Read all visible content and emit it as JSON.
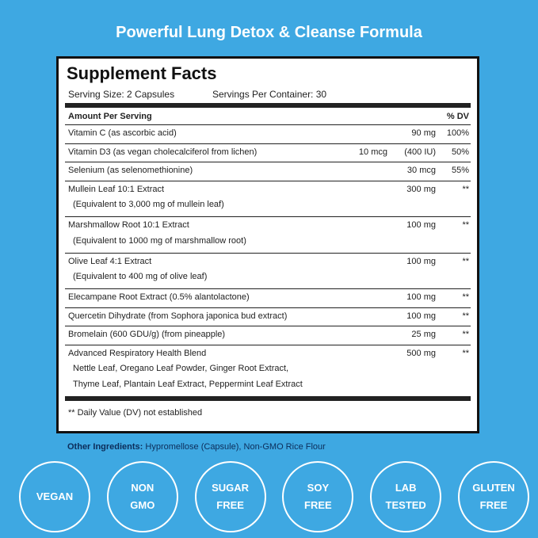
{
  "title": "Powerful Lung Detox & Cleanse Formula",
  "panel": {
    "heading": "Supplement Facts",
    "serving_size": "Serving Size: 2 Capsules",
    "servings_per_container": "Servings Per Container: 30",
    "header": {
      "amount": "Amount Per Serving",
      "dv": "% DV"
    },
    "rows": [
      {
        "lines": [
          "Vitamin C (as ascorbic acid)"
        ],
        "amount": "90 mg",
        "dv": "100%"
      },
      {
        "lines": [
          "Vitamin D3 (as vegan cholecalciferol from lichen)"
        ],
        "amount_alt": "10 mcg",
        "amount": "(400 IU)",
        "dv": "50%"
      },
      {
        "lines": [
          "Selenium (as selenomethionine)"
        ],
        "amount": "30 mcg",
        "dv": "55%"
      },
      {
        "lines": [
          "Mullein Leaf 10:1 Extract",
          "(Equivalent to 3,000 mg of mullein leaf)"
        ],
        "amount": "300 mg",
        "dv": "**"
      },
      {
        "lines": [
          "Marshmallow Root 10:1 Extract",
          "(Equivalent to 1000 mg of marshmallow root)"
        ],
        "amount": "100 mg",
        "dv": "**"
      },
      {
        "lines": [
          "Olive Leaf 4:1 Extract",
          "(Equivalent to 400 mg of olive leaf)"
        ],
        "amount": "100 mg",
        "dv": "**"
      },
      {
        "lines": [
          "Elecampane Root Extract (0.5% alantolactone)"
        ],
        "amount": "100 mg",
        "dv": "**"
      },
      {
        "lines": [
          "Quercetin Dihydrate (from Sophora japonica bud extract)"
        ],
        "amount": "100 mg",
        "dv": "**"
      },
      {
        "lines": [
          "Bromelain (600 GDU/g) (from pineapple)"
        ],
        "amount": "25 mg",
        "dv": "**"
      },
      {
        "lines": [
          "Advanced Respiratory Health Blend",
          "Nettle Leaf, Oregano Leaf Powder, Ginger Root Extract,",
          "Thyme Leaf, Plantain Leaf Extract, Peppermint Leaf Extract"
        ],
        "amount": "500 mg",
        "dv": "**"
      }
    ],
    "footnote": "** Daily Value (DV) not established"
  },
  "other_ingredients": {
    "label": "Other Ingredients:",
    "text": "Hypromellose (Capsule), Non-GMO Rice Flour"
  },
  "badges": [
    [
      "VEGAN"
    ],
    [
      "NON",
      "GMO"
    ],
    [
      "SUGAR",
      "FREE"
    ],
    [
      "SOY",
      "FREE"
    ],
    [
      "LAB",
      "TESTED"
    ],
    [
      "GLUTEN",
      "FREE"
    ]
  ]
}
